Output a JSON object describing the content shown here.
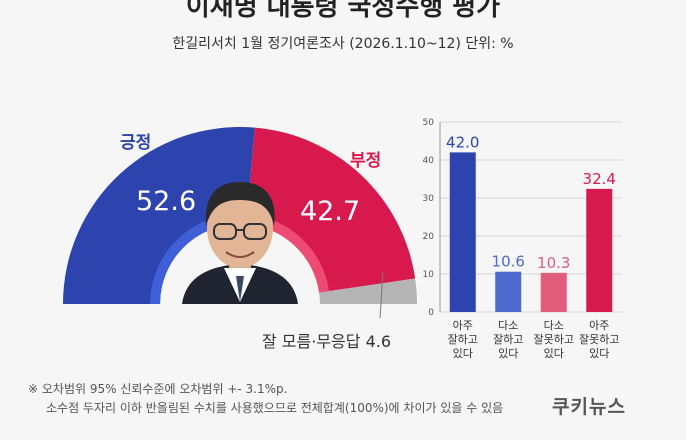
{
  "header": {
    "title": "이재명 대통령 국정수행 평가",
    "subtitle": "한길리서치 1월 정기여론조사 (2026.1.10~12) 단위: %"
  },
  "colors": {
    "positive": "#2d43ad",
    "negative": "#d8194d",
    "unknown": "#b4b4b4",
    "bar_light_blue": "#4d6acd",
    "bar_light_red": "#e25c7c"
  },
  "icons": {
    "center_photo": "person-portrait-icon"
  },
  "chart_data": [
    {
      "type": "pie",
      "labels": [
        "긍정",
        "부정",
        "잘 모름·무응답"
      ],
      "values": [
        52.6,
        42.7,
        4.6
      ],
      "value_labels": [
        "52.6",
        "42.7",
        "4.6"
      ],
      "unknown_label": "잘 모름·무응답 4.6"
    },
    {
      "type": "bar",
      "categories": [
        [
          "아주",
          "잘하고",
          "있다"
        ],
        [
          "다소",
          "잘하고",
          "있다"
        ],
        [
          "다소",
          "잘못하고",
          "있다"
        ],
        [
          "아주",
          "잘못하고",
          "있다"
        ]
      ],
      "values": [
        42.0,
        10.6,
        10.3,
        32.4
      ],
      "value_labels": [
        "42.0",
        "10.6",
        "10.3",
        "32.4"
      ],
      "ylim": [
        0,
        50
      ],
      "yticks": [
        "0",
        "10",
        "20",
        "30",
        "40",
        "50"
      ],
      "grid": true
    }
  ],
  "footnote": {
    "line1": "※ 오차범위 95% 신뢰수준에 오차범위 +- 3.1%p.",
    "line2": "소수점 두자리 이하 반올림된 수치를 사용했으므로 전체합계(100%)에 차이가 있을 수 있음"
  },
  "logo": "쿠키뉴스"
}
